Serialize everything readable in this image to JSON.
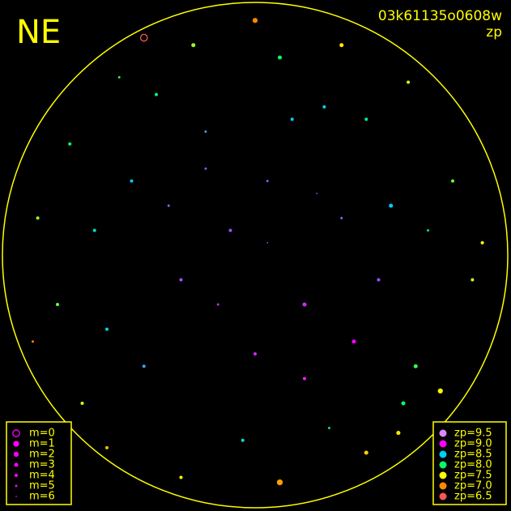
{
  "chart_data": {
    "type": "scatter",
    "title": "NE",
    "subtitle": "03k61135o0608w",
    "color_label": "zp",
    "frame_color": "#ffff00",
    "xlim": [
      -1,
      1
    ],
    "ylim": [
      -1,
      1
    ],
    "x": [
      -0.1,
      0.2,
      0.05,
      -0.3,
      0.35,
      -0.5,
      0.55,
      0.0,
      -0.2,
      0.15,
      0.4,
      -0.45,
      0.6,
      -0.65,
      0.7,
      -0.75,
      0.1,
      -0.05,
      0.25,
      -0.35,
      0.45,
      -0.6,
      0.65,
      -0.8,
      0.8,
      0.3,
      -0.15,
      0.5,
      -0.4,
      0.05,
      0.75,
      -0.7,
      0.2,
      -0.25,
      0.58,
      -0.55,
      0.88,
      -0.88,
      0.35,
      0.0,
      -0.6,
      0.62,
      0.1,
      -0.3,
      0.45,
      -0.9,
      0.92,
      -0.45,
      0.28,
      -0.2
    ],
    "y": [
      0.1,
      -0.2,
      0.3,
      -0.1,
      0.15,
      0.3,
      0.2,
      -0.4,
      0.5,
      0.55,
      -0.35,
      -0.45,
      -0.6,
      0.1,
      0.1,
      0.45,
      0.8,
      -0.75,
      0.25,
      0.2,
      0.55,
      -0.3,
      -0.45,
      -0.2,
      0.3,
      -0.7,
      -0.2,
      -0.1,
      0.65,
      0.05,
      -0.55,
      -0.6,
      -0.5,
      0.85,
      -0.72,
      0.72,
      -0.1,
      0.15,
      0.85,
      0.95,
      -0.78,
      0.7,
      -0.92,
      -0.9,
      -0.8,
      -0.35,
      0.05,
      0.88,
      0.6,
      0.35
    ],
    "zp": [
      8.8,
      8.9,
      8.8,
      8.8,
      8.7,
      8.5,
      8.5,
      8.9,
      8.6,
      8.5,
      9.0,
      8.6,
      8.0,
      8.3,
      8.2,
      8.0,
      8.0,
      8.3,
      8.8,
      8.7,
      8.2,
      8.4,
      7.9,
      7.8,
      7.8,
      8.2,
      8.9,
      8.8,
      8.1,
      8.8,
      7.5,
      7.6,
      9.1,
      7.7,
      7.4,
      7.9,
      7.6,
      7.7,
      7.4,
      7.0,
      7.2,
      7.6,
      7.1,
      7.5,
      7.3,
      7.0,
      7.5,
      6.5,
      8.4,
      8.8
    ],
    "m": [
      4,
      3,
      5,
      4,
      5,
      4,
      3,
      4,
      5,
      4,
      3,
      4,
      3,
      4,
      5,
      4,
      3,
      4,
      6,
      5,
      4,
      4,
      3,
      4,
      4,
      5,
      5,
      4,
      4,
      6,
      2,
      4,
      4,
      3,
      3,
      5,
      4,
      4,
      3,
      2,
      4,
      4,
      1,
      4,
      3,
      5,
      4,
      0,
      4,
      5
    ],
    "m_legend": [
      {
        "value": 0,
        "label": "m=0"
      },
      {
        "value": 1,
        "label": "m=1"
      },
      {
        "value": 2,
        "label": "m=2"
      },
      {
        "value": 3,
        "label": "m=3"
      },
      {
        "value": 4,
        "label": "m=4"
      },
      {
        "value": 5,
        "label": "m=5"
      },
      {
        "value": 6,
        "label": "m=6"
      }
    ],
    "zp_legend": [
      {
        "value": 9.5,
        "label": "zp=9.5",
        "color": "#dd88ff"
      },
      {
        "value": 9.0,
        "label": "zp=9.0",
        "color": "#ff00ff"
      },
      {
        "value": 8.5,
        "label": "zp=8.5",
        "color": "#00ccff"
      },
      {
        "value": 8.0,
        "label": "zp=8.0",
        "color": "#00ff66"
      },
      {
        "value": 7.5,
        "label": "zp=7.5",
        "color": "#ffff00"
      },
      {
        "value": 7.0,
        "label": "zp=7.0",
        "color": "#ff8800"
      },
      {
        "value": 6.5,
        "label": "zp=6.5",
        "color": "#ff5555"
      }
    ]
  }
}
